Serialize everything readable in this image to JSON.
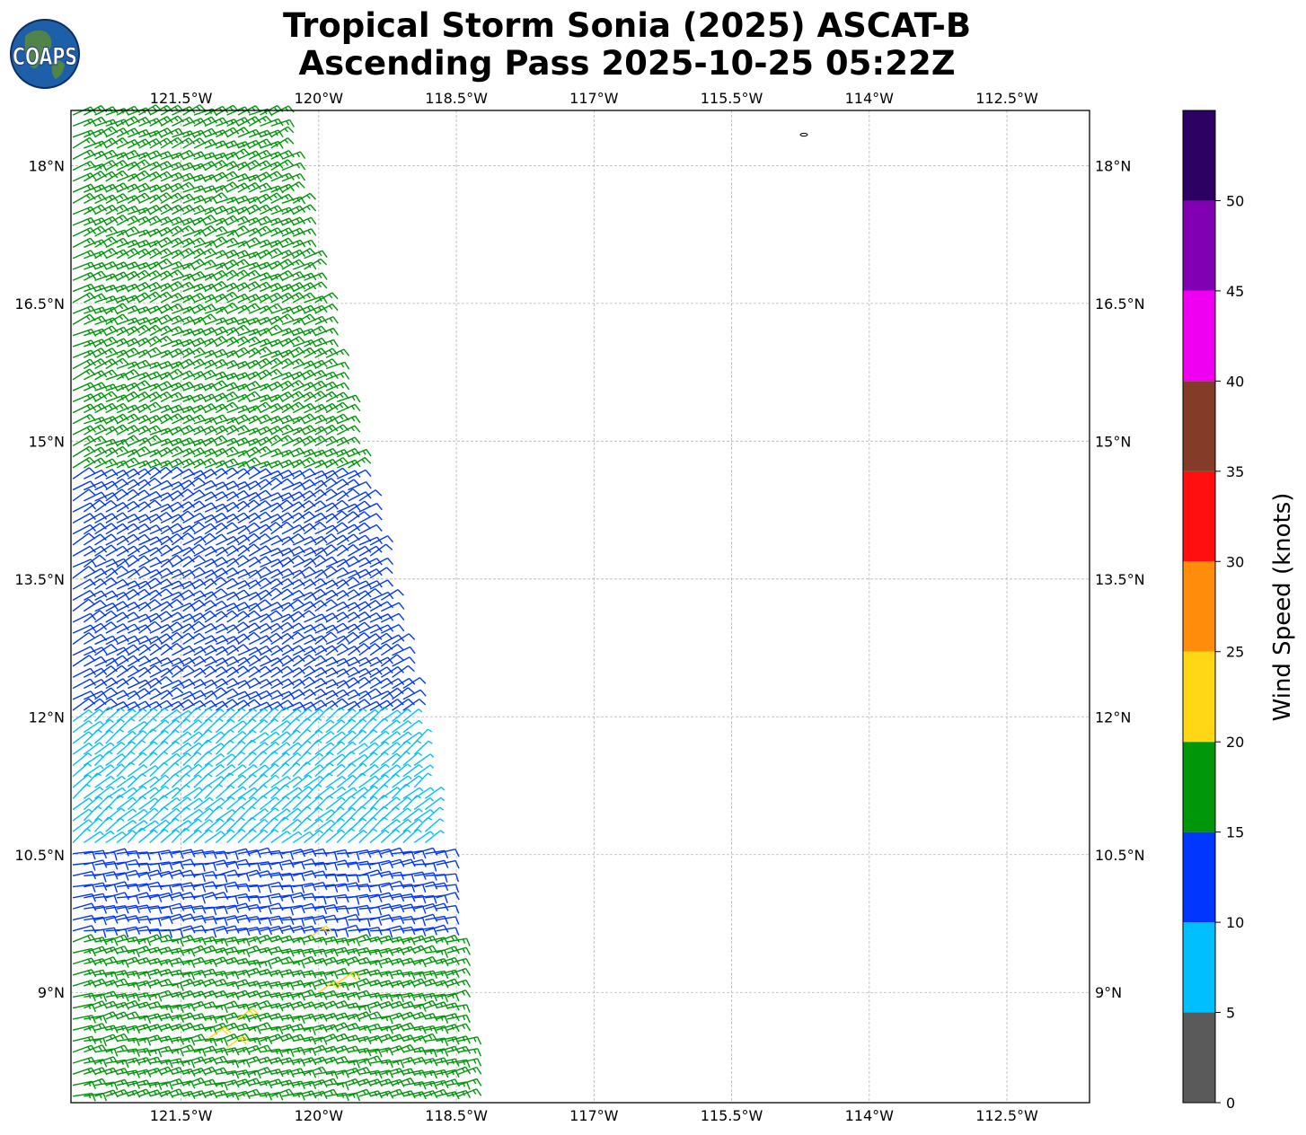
{
  "title": {
    "line1": "Tropical Storm Sonia (2025) ASCAT-B",
    "line2": "Ascending Pass 2025-10-25 05:22Z"
  },
  "logo": {
    "text": "COAPS",
    "icon": "globe-logo-icon"
  },
  "chart_data": {
    "type": "wind-barb-map",
    "lon_range": [
      -122.7,
      -111.6
    ],
    "lat_range": [
      7.8,
      18.6
    ],
    "grid": true,
    "x_ticks": [
      {
        "value": -121.5,
        "label": "121.5°W"
      },
      {
        "value": -120,
        "label": "120°W"
      },
      {
        "value": -118.5,
        "label": "118.5°W"
      },
      {
        "value": -117,
        "label": "117°W"
      },
      {
        "value": -115.5,
        "label": "115.5°W"
      },
      {
        "value": -114,
        "label": "114°W"
      },
      {
        "value": -112.5,
        "label": "112.5°W"
      }
    ],
    "y_ticks": [
      {
        "value": 18,
        "label": "18°N"
      },
      {
        "value": 16.5,
        "label": "16.5°N"
      },
      {
        "value": 15,
        "label": "15°N"
      },
      {
        "value": 13.5,
        "label": "13.5°N"
      },
      {
        "value": 12,
        "label": "12°N"
      },
      {
        "value": 10.5,
        "label": "10.5°N"
      },
      {
        "value": 9,
        "label": "9°N"
      }
    ],
    "swath": {
      "edge_lons_at_lat": [
        {
          "lat": 18.6,
          "lon": -120.5
        },
        {
          "lat": 15.0,
          "lon": -119.7
        },
        {
          "lat": 12.0,
          "lon": -119.0
        },
        {
          "lat": 10.5,
          "lon": -118.7
        },
        {
          "lat": 7.8,
          "lon": -118.4
        }
      ],
      "west_lon": -122.7
    },
    "regions": [
      {
        "lat_range": [
          14.7,
          18.6
        ],
        "speed_kt": 17,
        "dir_deg": 245
      },
      {
        "lat_range": [
          12.0,
          14.7
        ],
        "speed_kt": 12,
        "dir_deg": 240
      },
      {
        "lat_range": [
          10.6,
          12.0
        ],
        "speed_kt": 8,
        "dir_deg": 230
      },
      {
        "lat_range": [
          9.6,
          10.6
        ],
        "speed_kt": 12,
        "dir_deg": 260
      },
      {
        "lat_range": [
          7.8,
          9.6
        ],
        "speed_kt": 18,
        "dir_deg": 255
      }
    ],
    "highlights": [
      {
        "lon": -121.2,
        "lat": 8.5,
        "speed_kt": 22
      },
      {
        "lon": -121.0,
        "lat": 8.4,
        "speed_kt": 22
      },
      {
        "lon": -120.9,
        "lat": 8.7,
        "speed_kt": 22
      },
      {
        "lon": -120.0,
        "lat": 9.0,
        "speed_kt": 22
      },
      {
        "lon": -119.8,
        "lat": 9.1,
        "speed_kt": 22
      },
      {
        "lon": -120.1,
        "lat": 9.6,
        "speed_kt": 22
      }
    ],
    "colorbar": {
      "label": "Wind Speed (knots)",
      "bounds": [
        0,
        5,
        10,
        15,
        20,
        25,
        30,
        35,
        40,
        45,
        50,
        55
      ],
      "tick_labels": [
        "0",
        "5",
        "10",
        "15",
        "20",
        "25",
        "30",
        "35",
        "40",
        "45",
        "50"
      ],
      "colors": [
        "#5a5a5a",
        "#00bfff",
        "#0036ff",
        "#00960a",
        "#ffd714",
        "#ff8c0a",
        "#ff0f0f",
        "#823c28",
        "#f000f0",
        "#8200b4",
        "#2d0064"
      ]
    }
  }
}
